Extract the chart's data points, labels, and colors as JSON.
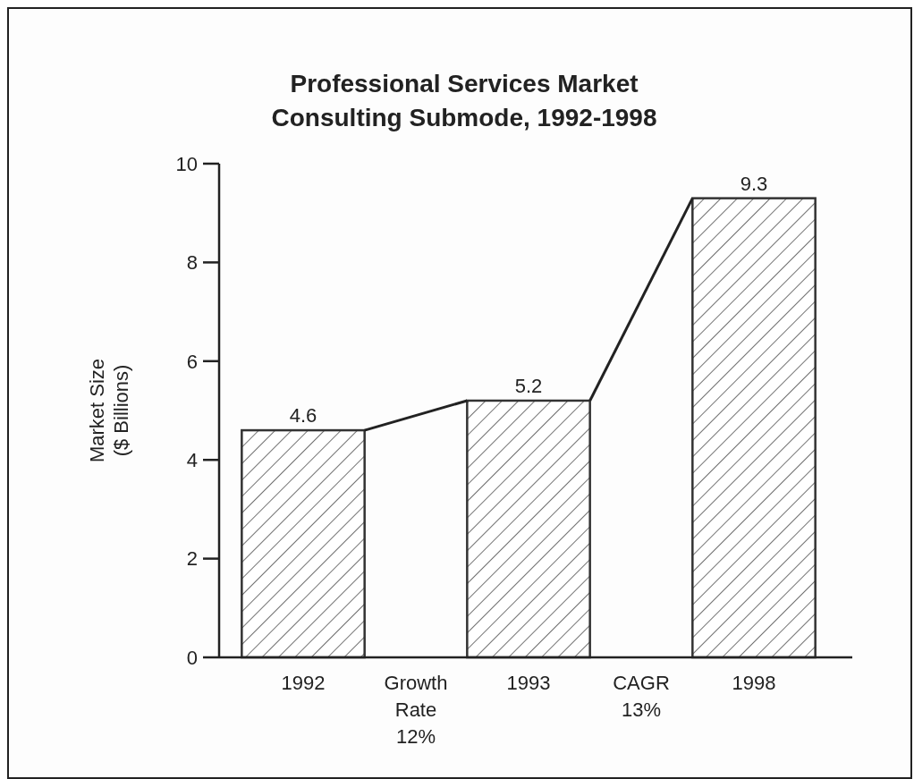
{
  "chart_data": {
    "type": "bar",
    "title": "Professional Services Market\nConsulting Submode, 1992-1998",
    "ylabel": "Market Size\n($ Billions)",
    "categories": [
      "1992",
      "Growth Rate 12%",
      "1993",
      "CAGR 13%",
      "1998"
    ],
    "values": [
      4.6,
      null,
      5.2,
      null,
      9.3
    ],
    "color": "#333333",
    "ylim": [
      0,
      10
    ],
    "yticks": [
      0,
      2,
      4,
      6,
      8,
      10
    ],
    "data_labels": true,
    "grid": false
  }
}
